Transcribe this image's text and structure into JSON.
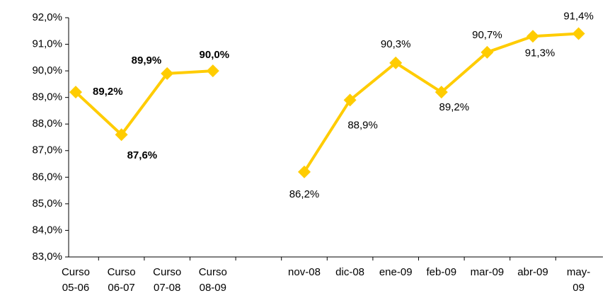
{
  "chart_data": {
    "type": "line",
    "categories": [
      "Curso 05-06",
      "Curso 06-07",
      "Curso 07-08",
      "Curso 08-09",
      null,
      "nov-08",
      "dic-08",
      "ene-09",
      "feb-09",
      "mar-09",
      "abr-09",
      "may-09"
    ],
    "series": [
      {
        "color": "#ffcc00",
        "values": [
          89.2,
          87.6,
          89.9,
          90.0,
          null,
          86.2,
          88.9,
          90.3,
          89.2,
          90.7,
          91.3,
          91.4
        ],
        "value_labels": [
          "89,2%",
          "87,6%",
          "89,9%",
          "90,0%",
          null,
          "86,2%",
          "88,9%",
          "90,3%",
          "89,2%",
          "90,7%",
          "91,3%",
          "91,4%"
        ]
      }
    ],
    "ylim": [
      83,
      92
    ],
    "yticks": [
      {
        "value": 83,
        "label": "83,0%"
      },
      {
        "value": 84,
        "label": "84,0%"
      },
      {
        "value": 85,
        "label": "85,0%"
      },
      {
        "value": 86,
        "label": "86,0%"
      },
      {
        "value": 87,
        "label": "87,0%"
      },
      {
        "value": 88,
        "label": "88,0%"
      },
      {
        "value": 89,
        "label": "89,0%"
      },
      {
        "value": 90,
        "label": "90,0%"
      },
      {
        "value": 91,
        "label": "91,0%"
      },
      {
        "value": 92,
        "label": "92,0%"
      }
    ]
  }
}
